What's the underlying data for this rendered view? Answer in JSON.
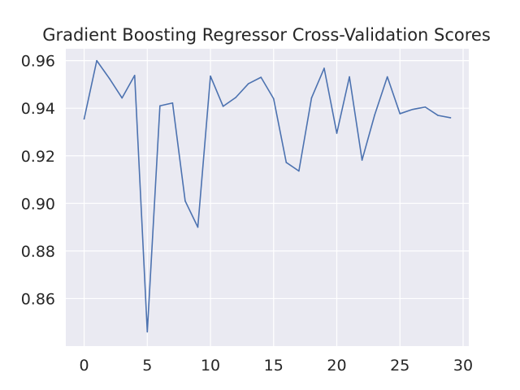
{
  "chart_data": {
    "type": "line",
    "title": "Gradient Boosting Regressor Cross-Validation Scores",
    "xlabel": "",
    "ylabel": "",
    "xlim": [
      -1.45,
      30.45
    ],
    "ylim": [
      0.84,
      0.965
    ],
    "grid": true,
    "x_ticks": [
      0,
      5,
      10,
      15,
      20,
      25,
      30
    ],
    "y_ticks": [
      0.86,
      0.88,
      0.9,
      0.92,
      0.94,
      0.96
    ],
    "y_tick_labels": [
      "0.86",
      "0.88",
      "0.90",
      "0.92",
      "0.94",
      "0.96"
    ],
    "series": [
      {
        "color": "#4c72b0",
        "x": [
          0,
          1,
          2,
          3,
          4,
          5,
          6,
          7,
          8,
          9,
          10,
          11,
          12,
          13,
          14,
          15,
          16,
          17,
          18,
          19,
          20,
          21,
          22,
          23,
          24,
          25,
          26,
          27,
          28,
          29
        ],
        "values": [
          0.9355,
          0.96,
          0.9525,
          0.9443,
          0.9538,
          0.846,
          0.941,
          0.9422,
          0.901,
          0.89,
          0.9535,
          0.9408,
          0.9445,
          0.9503,
          0.953,
          0.944,
          0.9172,
          0.9136,
          0.9443,
          0.9568,
          0.9295,
          0.9532,
          0.9182,
          0.9372,
          0.9532,
          0.9377,
          0.9395,
          0.9405,
          0.937,
          0.936
        ]
      }
    ]
  },
  "colors": {
    "plot_background": "#eaeaf2",
    "grid": "#ffffff",
    "text": "#262626"
  }
}
